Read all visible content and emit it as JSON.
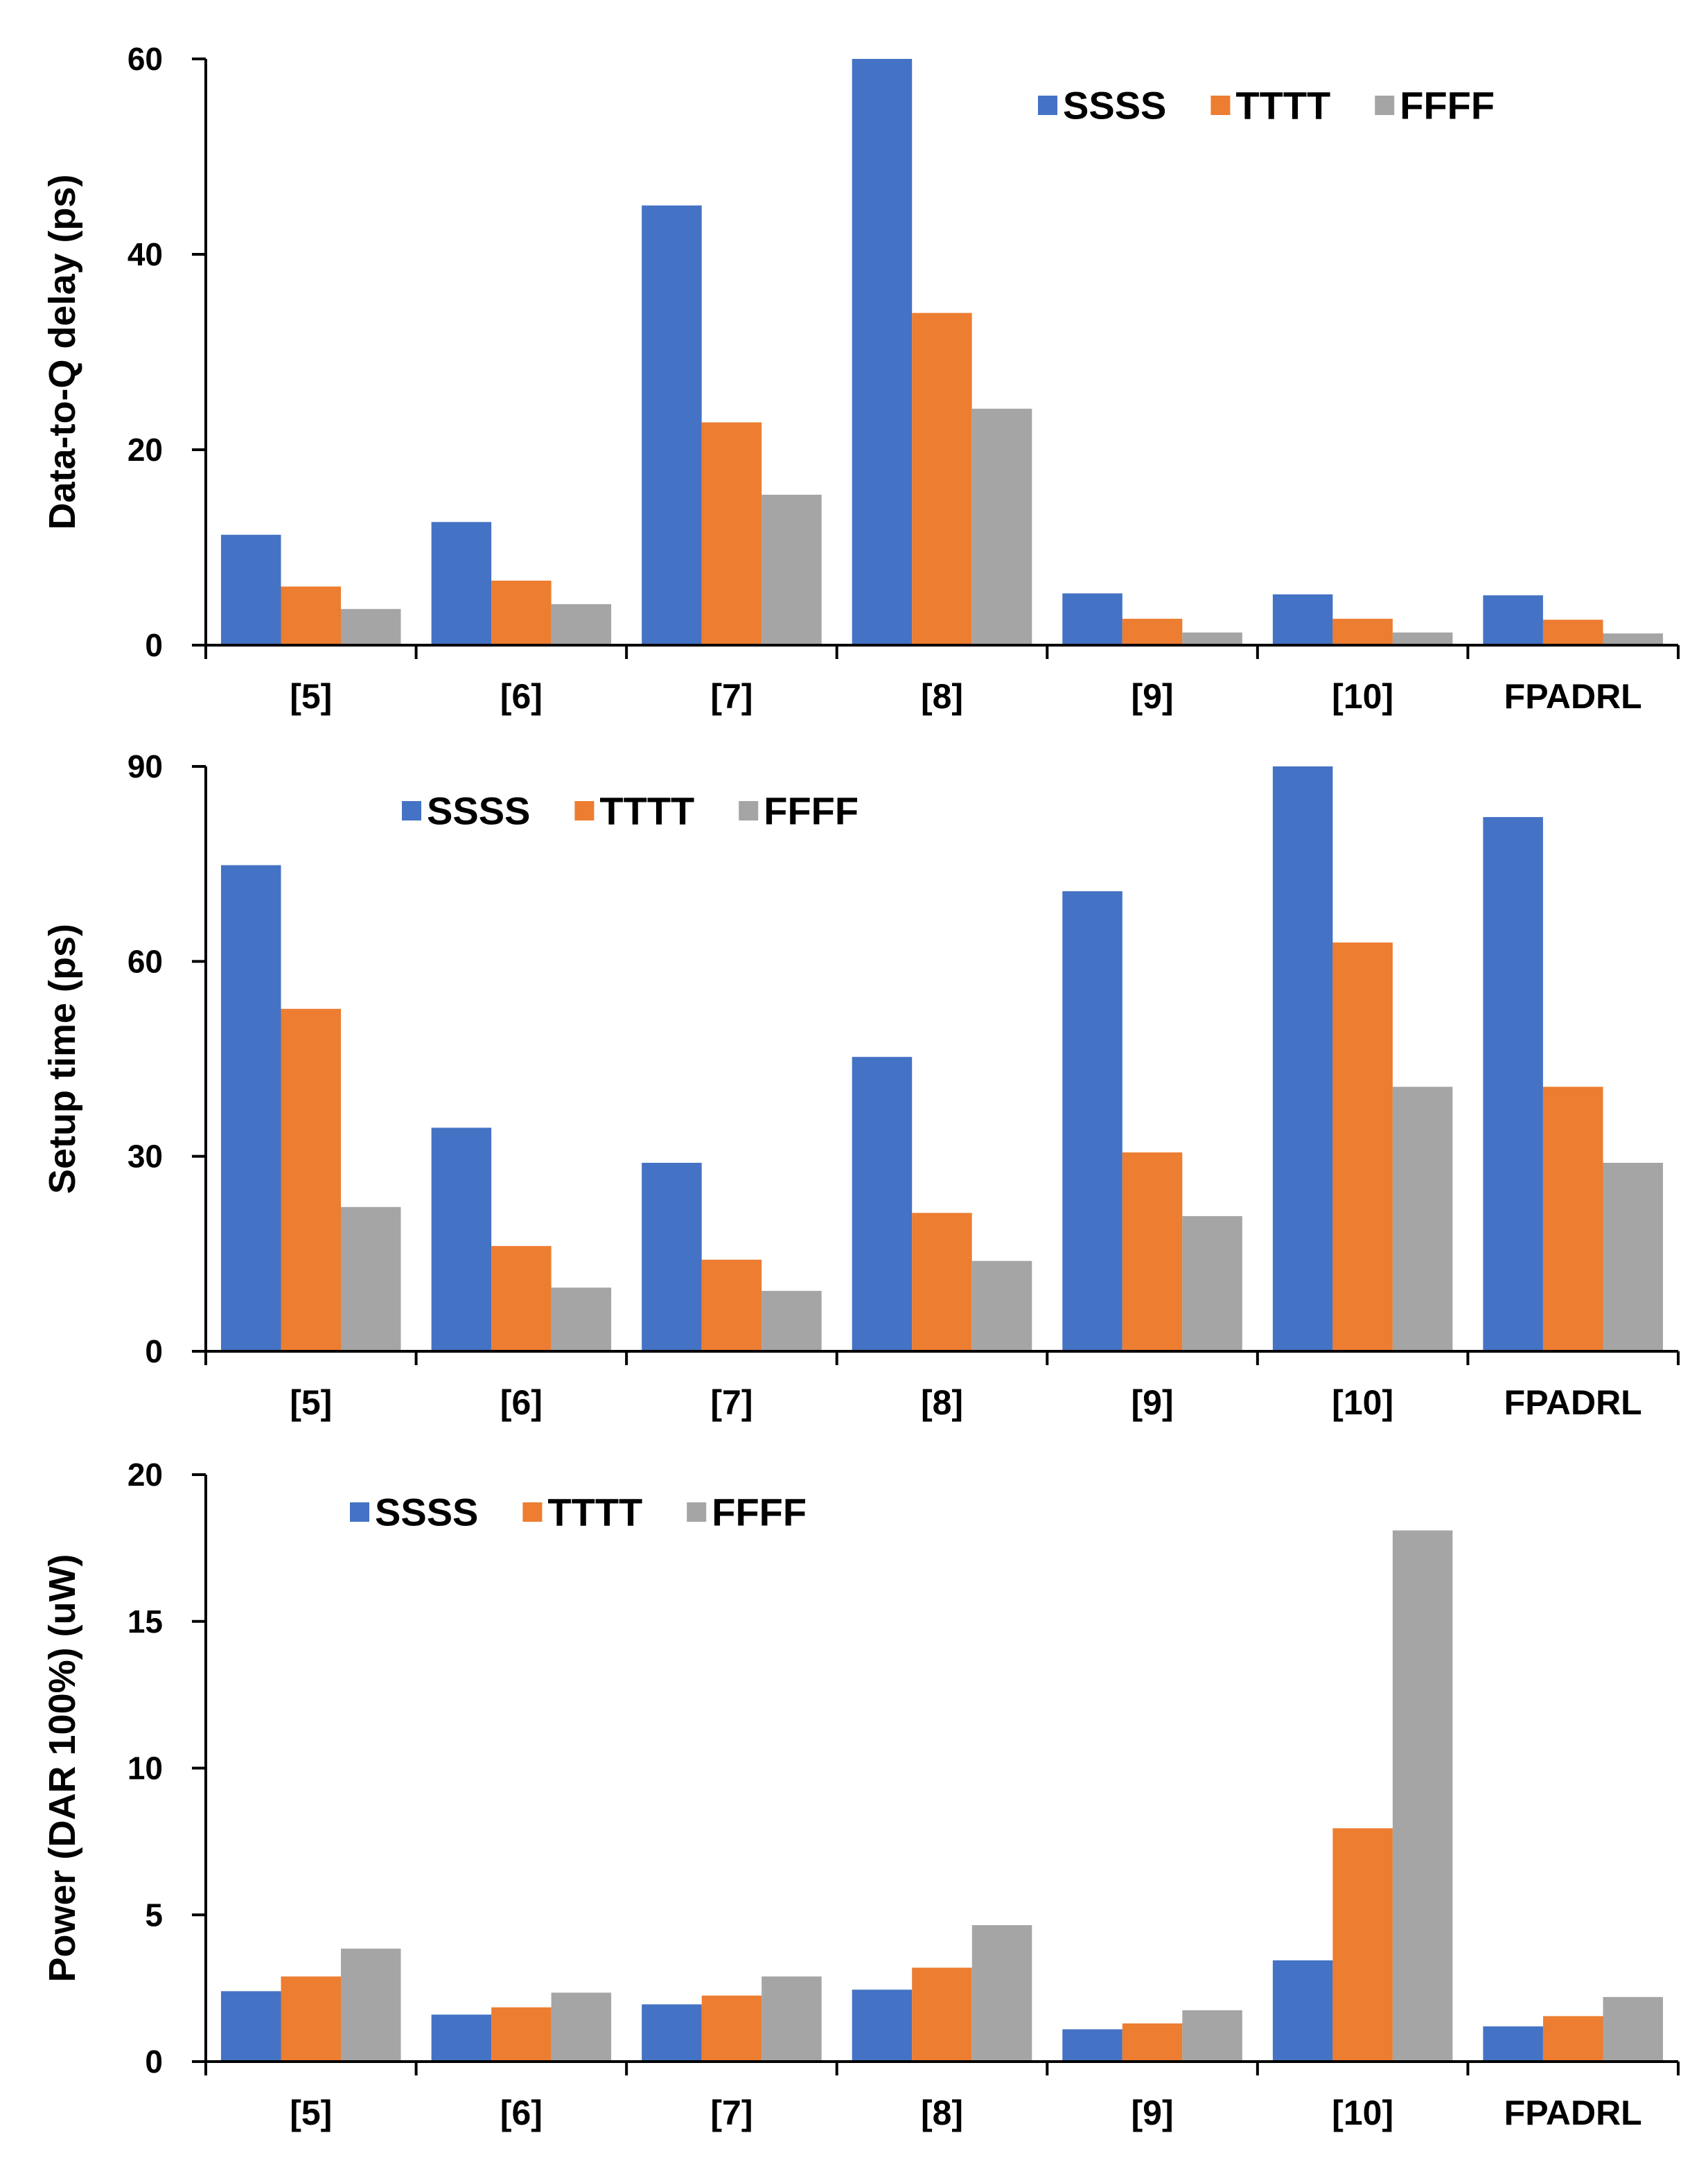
{
  "colors": {
    "SSSS": "#4472C4",
    "TTTT": "#ED7D31",
    "FFFF": "#A5A5A5",
    "axis": "#000000"
  },
  "chart_data": [
    {
      "type": "bar",
      "title": "",
      "xlabel": "",
      "ylabel": "Data-to-Q delay (ps)",
      "ylim": [
        0,
        60
      ],
      "yticks": [
        0,
        20,
        40,
        60
      ],
      "legend_position": "top-right",
      "categories": [
        "[5]",
        "[6]",
        "[7]",
        "[8]",
        "[9]",
        "[10]",
        "FPADRL"
      ],
      "series": [
        {
          "name": "SSSS",
          "values": [
            11.3,
            12.6,
            45,
            60,
            5.3,
            5.2,
            5.1
          ]
        },
        {
          "name": "TTTT",
          "values": [
            6,
            6.6,
            22.8,
            34,
            2.7,
            2.7,
            2.6
          ]
        },
        {
          "name": "FFFF",
          "values": [
            3.7,
            4.2,
            15.4,
            24.2,
            1.3,
            1.3,
            1.2
          ]
        }
      ]
    },
    {
      "type": "bar",
      "title": "",
      "xlabel": "",
      "ylabel": "Setup time (ps)",
      "ylim": [
        0,
        90
      ],
      "yticks": [
        0,
        30,
        60,
        90
      ],
      "legend_position": "top-center",
      "categories": [
        "[5]",
        "[6]",
        "[7]",
        "[8]",
        "[9]",
        "[10]",
        "FPADRL"
      ],
      "series": [
        {
          "name": "SSSS",
          "values": [
            74.8,
            34.4,
            29,
            45.3,
            70.8,
            90,
            82.2
          ]
        },
        {
          "name": "TTTT",
          "values": [
            52.7,
            16.2,
            14.1,
            21.3,
            30.6,
            62.9,
            40.7
          ]
        },
        {
          "name": "FFFF",
          "values": [
            22.2,
            9.8,
            9.3,
            13.9,
            20.8,
            40.7,
            29
          ]
        }
      ]
    },
    {
      "type": "bar",
      "title": "",
      "xlabel": "",
      "ylabel": "Power (DAR 100%) (uW)",
      "ylim": [
        0,
        20
      ],
      "yticks": [
        0,
        5,
        10,
        15,
        20
      ],
      "legend_position": "top-left",
      "categories": [
        "[5]",
        "[6]",
        "[7]",
        "[8]",
        "[9]",
        "[10]",
        "FPADRL"
      ],
      "series": [
        {
          "name": "SSSS",
          "values": [
            2.4,
            1.6,
            1.95,
            2.45,
            1.1,
            3.45,
            1.2
          ]
        },
        {
          "name": "TTTT",
          "values": [
            2.9,
            1.85,
            2.25,
            3.2,
            1.3,
            7.95,
            1.55
          ]
        },
        {
          "name": "FFFF",
          "values": [
            3.85,
            2.35,
            2.9,
            4.65,
            1.75,
            18.1,
            2.2
          ]
        }
      ]
    }
  ]
}
